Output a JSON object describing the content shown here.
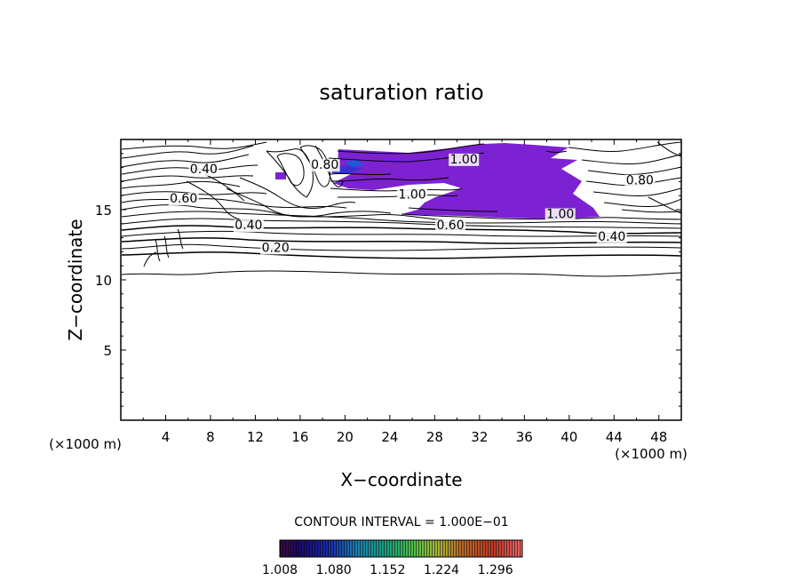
{
  "chart_data": {
    "type": "contour",
    "title": "saturation ratio",
    "xlabel": "X−coordinate",
    "ylabel": "Z−coordinate",
    "x_unit": "(×1000 m)",
    "y_unit": "(×1000 m)",
    "xlim": [
      0,
      50
    ],
    "ylim": [
      0,
      20
    ],
    "x_ticks": [
      4,
      8,
      12,
      16,
      20,
      24,
      28,
      32,
      36,
      40,
      44,
      48
    ],
    "y_ticks": [
      5,
      10,
      15
    ],
    "contour_interval_label": "CONTOUR INTERVAL = 1.000E−01",
    "contour_labels": [
      {
        "text": "0.40",
        "x": 7.4,
        "y": 17.6
      },
      {
        "text": "0.60",
        "x": 5.6,
        "y": 15.5
      },
      {
        "text": "0.80",
        "x": 18.2,
        "y": 17.9
      },
      {
        "text": "1.00",
        "x": 30.6,
        "y": 18.3
      },
      {
        "text": "1.00",
        "x": 26.0,
        "y": 15.8
      },
      {
        "text": "1.00",
        "x": 39.2,
        "y": 14.4
      },
      {
        "text": "0.40",
        "x": 11.4,
        "y": 13.6
      },
      {
        "text": "0.60",
        "x": 29.4,
        "y": 13.6
      },
      {
        "text": "0.40",
        "x": 43.8,
        "y": 12.8
      },
      {
        "text": "0.20",
        "x": 13.8,
        "y": 12.0
      },
      {
        "text": "0.80",
        "x": 46.3,
        "y": 16.8
      }
    ],
    "colorbar": {
      "ticks": [
        "1.008",
        "1.080",
        "1.152",
        "1.224",
        "1.296"
      ],
      "range": [
        1.008,
        1.332
      ]
    },
    "filled_region": {
      "description_color": "#7e22d6",
      "min_value": 1.0
    }
  }
}
